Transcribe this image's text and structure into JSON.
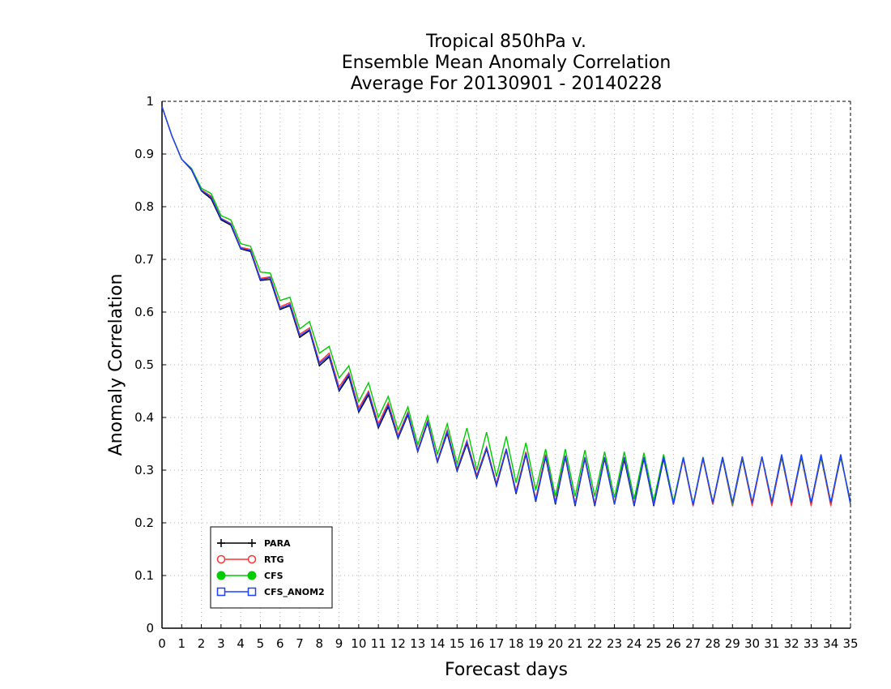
{
  "chart_data": {
    "type": "line",
    "title_lines": [
      "Tropical 850hPa v.",
      "Ensemble Mean Anomaly Correlation",
      "Average For 20130901 - 20140228"
    ],
    "xlabel": "Forecast days",
    "ylabel": "Anomaly Correlation",
    "xlim": [
      0,
      35
    ],
    "ylim": [
      0,
      1
    ],
    "x_ticks": [
      "0",
      "1",
      "2",
      "3",
      "4",
      "5",
      "6",
      "7",
      "8",
      "9",
      "10",
      "11",
      "12",
      "13",
      "14",
      "15",
      "16",
      "17",
      "18",
      "19",
      "20",
      "21",
      "22",
      "23",
      "24",
      "25",
      "26",
      "27",
      "28",
      "29",
      "30",
      "31",
      "32",
      "33",
      "34",
      "35"
    ],
    "y_ticks": [
      "0",
      "0.1",
      "0.2",
      "0.3",
      "0.4",
      "0.5",
      "0.6",
      "0.7",
      "0.8",
      "0.9",
      "1"
    ],
    "grid": true,
    "legend_position": "bottom-left",
    "x": [
      0,
      0.5,
      1,
      1.5,
      2,
      2.5,
      3,
      3.5,
      4,
      4.5,
      5,
      5.5,
      6,
      6.5,
      7,
      7.5,
      8,
      8.5,
      9,
      9.5,
      10,
      10.5,
      11,
      11.5,
      12,
      12.5,
      13,
      13.5,
      14,
      14.5,
      15,
      15.5,
      16,
      16.5,
      17,
      17.5,
      18,
      18.5,
      19,
      19.5,
      20,
      20.5,
      21,
      21.5,
      22,
      22.5,
      23,
      23.5,
      24,
      24.5,
      25,
      25.5,
      26,
      26.5,
      27,
      27.5,
      28,
      28.5,
      29,
      29.5,
      30,
      30.5,
      31,
      31.5,
      32,
      32.5,
      33,
      33.5,
      34,
      34.5,
      35
    ],
    "series": [
      {
        "name": "PARA",
        "color": "#000000",
        "marker": "plus",
        "values": [
          0.99,
          0.935,
          0.89,
          0.87,
          0.83,
          0.815,
          0.775,
          0.765,
          0.72,
          0.715,
          0.66,
          0.662,
          0.605,
          0.612,
          0.552,
          0.565,
          0.498,
          0.515,
          0.45,
          0.478,
          0.41,
          0.443,
          0.38,
          0.42,
          0.36,
          0.405,
          0.335,
          0.39,
          0.315,
          0.37,
          0.298,
          0.35,
          0.285,
          0.34,
          0.27,
          0.338,
          0.255,
          0.33,
          0.24,
          0.325,
          0.235,
          0.325,
          0.232,
          0.322,
          0.232,
          0.322,
          0.235,
          0.32,
          0.232,
          0.322,
          0.232,
          0.322,
          0.235,
          0.322,
          0.232,
          0.322,
          0.235,
          0.322,
          0.232,
          0.322,
          0.235,
          0.325,
          0.235,
          0.325,
          0.235,
          0.325,
          0.235,
          0.325,
          0.235,
          0.325,
          0.24
        ]
      },
      {
        "name": "RTG",
        "color": "#ff3333",
        "marker": "open-circle",
        "values": [
          0.99,
          0.935,
          0.89,
          0.872,
          0.832,
          0.82,
          0.778,
          0.768,
          0.723,
          0.719,
          0.664,
          0.667,
          0.61,
          0.618,
          0.558,
          0.57,
          0.505,
          0.522,
          0.458,
          0.485,
          0.418,
          0.45,
          0.388,
          0.428,
          0.366,
          0.41,
          0.338,
          0.394,
          0.318,
          0.376,
          0.302,
          0.356,
          0.29,
          0.344,
          0.275,
          0.341,
          0.26,
          0.335,
          0.245,
          0.33,
          0.24,
          0.328,
          0.236,
          0.325,
          0.236,
          0.325,
          0.236,
          0.325,
          0.235,
          0.325,
          0.235,
          0.328,
          0.236,
          0.322,
          0.232,
          0.322,
          0.235,
          0.324,
          0.232,
          0.324,
          0.232,
          0.324,
          0.232,
          0.328,
          0.232,
          0.328,
          0.232,
          0.328,
          0.232,
          0.328,
          0.235
        ]
      },
      {
        "name": "CFS",
        "color": "#00cc00",
        "marker": "filled-circle",
        "values": [
          0.99,
          0.935,
          0.89,
          0.873,
          0.835,
          0.825,
          0.783,
          0.775,
          0.73,
          0.725,
          0.676,
          0.674,
          0.622,
          0.628,
          0.568,
          0.582,
          0.522,
          0.535,
          0.475,
          0.498,
          0.43,
          0.466,
          0.4,
          0.44,
          0.376,
          0.42,
          0.348,
          0.403,
          0.33,
          0.388,
          0.312,
          0.38,
          0.3,
          0.372,
          0.288,
          0.364,
          0.276,
          0.352,
          0.262,
          0.34,
          0.25,
          0.34,
          0.25,
          0.338,
          0.25,
          0.335,
          0.248,
          0.335,
          0.245,
          0.333,
          0.242,
          0.33,
          0.24,
          0.325,
          0.235,
          0.325,
          0.238,
          0.325,
          0.235,
          0.325,
          0.238,
          0.325,
          0.24,
          0.328,
          0.238,
          0.328,
          0.238,
          0.328,
          0.238,
          0.328,
          0.235
        ]
      },
      {
        "name": "CFS_ANOM2",
        "color": "#1f3fff",
        "marker": "open-square",
        "values": [
          0.99,
          0.935,
          0.89,
          0.871,
          0.831,
          0.818,
          0.777,
          0.767,
          0.721,
          0.717,
          0.662,
          0.665,
          0.607,
          0.615,
          0.555,
          0.567,
          0.502,
          0.518,
          0.453,
          0.482,
          0.413,
          0.447,
          0.383,
          0.424,
          0.362,
          0.408,
          0.336,
          0.392,
          0.316,
          0.373,
          0.3,
          0.353,
          0.287,
          0.342,
          0.272,
          0.34,
          0.257,
          0.332,
          0.242,
          0.327,
          0.237,
          0.327,
          0.234,
          0.324,
          0.234,
          0.324,
          0.236,
          0.324,
          0.234,
          0.324,
          0.234,
          0.325,
          0.236,
          0.324,
          0.234,
          0.324,
          0.238,
          0.325,
          0.238,
          0.326,
          0.238,
          0.326,
          0.238,
          0.33,
          0.238,
          0.33,
          0.238,
          0.33,
          0.238,
          0.33,
          0.235
        ]
      }
    ]
  }
}
